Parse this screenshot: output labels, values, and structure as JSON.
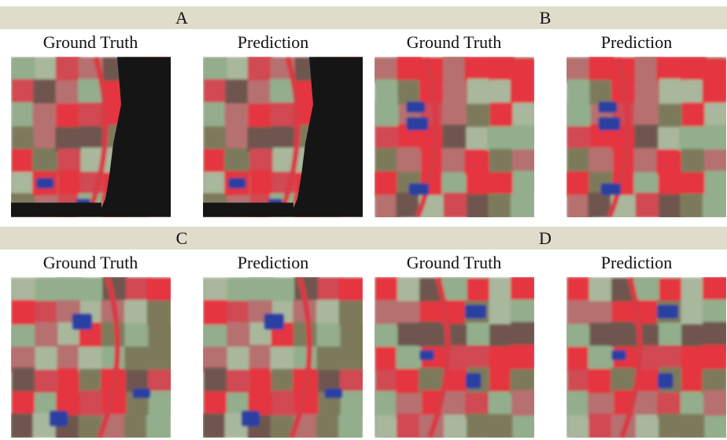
{
  "panels": [
    {
      "label": "A",
      "left_title": "Ground Truth",
      "right_title": "Prediction"
    },
    {
      "label": "B",
      "left_title": "Ground Truth",
      "right_title": "Prediction"
    },
    {
      "label": "C",
      "left_title": "Ground Truth",
      "right_title": "Prediction"
    },
    {
      "label": "D",
      "left_title": "Ground Truth",
      "right_title": "Prediction"
    }
  ]
}
